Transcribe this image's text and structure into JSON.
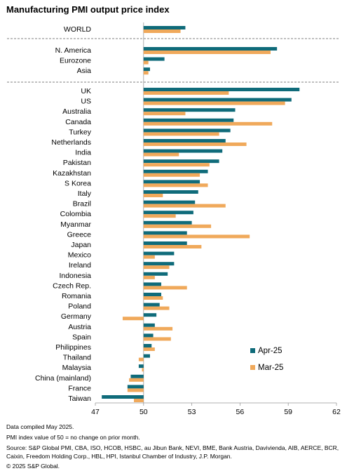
{
  "title": "Manufacturing PMI output price index",
  "notes": {
    "compiled": "Data compiled May 2025.",
    "pmi": "PMI index value of 50 = no change on prior month.",
    "source": "Source: S&P Global PMI, CBA, ISO, HCOB, HSBC, au Jibun Bank, NEVI, BME, Bank Austria, Davivienda, AIB, AERCE, BCR, Caixin, Freedom Holding Corp., HBL, HPI, Istanbul Chamber of Industry, J.P. Morgan.",
    "copyright": "© 2025 S&P Global."
  },
  "colors": {
    "apr": "#0f6b7a",
    "mar": "#f0a95b",
    "axis": "#999999",
    "divider": "#555555"
  },
  "chart_data": {
    "type": "bar",
    "orientation": "horizontal",
    "title": "Manufacturing PMI output price index",
    "xlim": [
      47,
      62
    ],
    "xticks": [
      47,
      50,
      53,
      56,
      59,
      62
    ],
    "baseline": 50,
    "legend_position": "bottom-right",
    "series": [
      {
        "name": "Apr-25",
        "color": "#0f6b7a"
      },
      {
        "name": "Mar-25",
        "color": "#f0a95b"
      }
    ],
    "groups": [
      {
        "rows": [
          {
            "label": "WORLD",
            "apr": 52.6,
            "mar": 52.3
          }
        ]
      },
      {
        "rows": [
          {
            "label": "N. America",
            "apr": 58.3,
            "mar": 57.9
          },
          {
            "label": "Eurozone",
            "apr": 51.3,
            "mar": 50.3
          },
          {
            "label": "Asia",
            "apr": 50.4,
            "mar": 50.3
          }
        ]
      },
      {
        "rows": [
          {
            "label": "UK",
            "apr": 59.7,
            "mar": 55.3
          },
          {
            "label": "US",
            "apr": 59.2,
            "mar": 58.8
          },
          {
            "label": "Australia",
            "apr": 55.7,
            "mar": 52.6
          },
          {
            "label": "Canada",
            "apr": 55.6,
            "mar": 58.0
          },
          {
            "label": "Turkey",
            "apr": 55.4,
            "mar": 54.7
          },
          {
            "label": "Netherlands",
            "apr": 55.1,
            "mar": 56.4
          },
          {
            "label": "India",
            "apr": 54.9,
            "mar": 52.2
          },
          {
            "label": "Pakistan",
            "apr": 54.7,
            "mar": 54.1
          },
          {
            "label": "Kazakhstan",
            "apr": 54.0,
            "mar": 53.5
          },
          {
            "label": "S Korea",
            "apr": 53.5,
            "mar": 54.0
          },
          {
            "label": "Italy",
            "apr": 53.4,
            "mar": 51.2
          },
          {
            "label": "Brazil",
            "apr": 53.2,
            "mar": 55.1
          },
          {
            "label": "Colombia",
            "apr": 53.1,
            "mar": 52.0
          },
          {
            "label": "Myanmar",
            "apr": 53.0,
            "mar": 54.2
          },
          {
            "label": "Greece",
            "apr": 52.7,
            "mar": 56.6
          },
          {
            "label": "Japan",
            "apr": 52.7,
            "mar": 53.6
          },
          {
            "label": "Mexico",
            "apr": 51.9,
            "mar": 50.7
          },
          {
            "label": "Ireland",
            "apr": 51.9,
            "mar": 51.6
          },
          {
            "label": "Indonesia",
            "apr": 51.5,
            "mar": 50.7
          },
          {
            "label": "Czech Rep.",
            "apr": 51.1,
            "mar": 52.7
          },
          {
            "label": "Romania",
            "apr": 51.1,
            "mar": 51.2
          },
          {
            "label": "Poland",
            "apr": 51.0,
            "mar": 51.6
          },
          {
            "label": "Germany",
            "apr": 50.8,
            "mar": 48.7
          },
          {
            "label": "Austria",
            "apr": 50.7,
            "mar": 51.8
          },
          {
            "label": "Spain",
            "apr": 50.6,
            "mar": 51.7
          },
          {
            "label": "Philippines",
            "apr": 50.5,
            "mar": 50.7
          },
          {
            "label": "Thailand",
            "apr": 50.4,
            "mar": 49.7
          },
          {
            "label": "Malaysia",
            "apr": 49.7,
            "mar": 49.9
          },
          {
            "label": "China (mainland)",
            "apr": 49.2,
            "mar": 49.1
          },
          {
            "label": "France",
            "apr": 49.0,
            "mar": 49.0
          },
          {
            "label": "Taiwan",
            "apr": 47.4,
            "mar": 49.4
          }
        ]
      }
    ]
  }
}
